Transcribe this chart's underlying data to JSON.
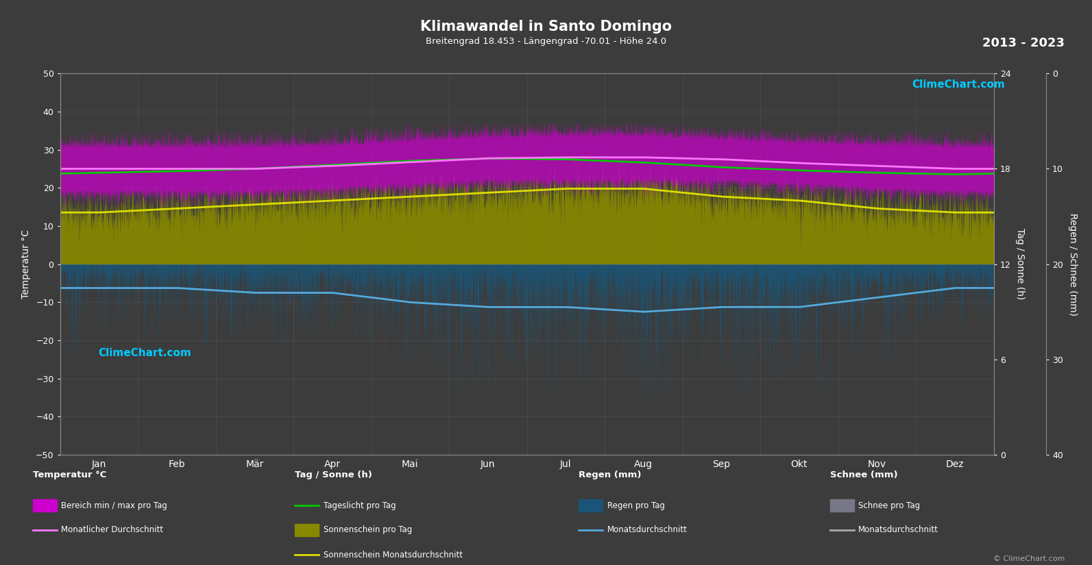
{
  "title": "Klimawandel in Santo Domingo",
  "subtitle": "Breitengrad 18.453 - Längengrad -70.01 - Höhe 24.0",
  "year_range": "2013 - 2023",
  "background_color": "#3c3c3c",
  "plot_bg_color": "#3c3c3c",
  "grid_color": "#555555",
  "text_color": "#ffffff",
  "months": [
    "Jan",
    "Feb",
    "Mär",
    "Apr",
    "Mai",
    "Jun",
    "Jul",
    "Aug",
    "Sep",
    "Okt",
    "Nov",
    "Dez"
  ],
  "temp_ylim": [
    -50,
    50
  ],
  "sun_ylim": [
    0,
    24
  ],
  "rain_ylim": [
    40,
    0
  ],
  "temp_ticks": [
    -50,
    -40,
    -30,
    -20,
    -10,
    0,
    10,
    20,
    30,
    40,
    50
  ],
  "sun_ticks": [
    0,
    6,
    12,
    18,
    24
  ],
  "rain_ticks": [
    0,
    10,
    20,
    30,
    40
  ],
  "temp_max_monthly": [
    30.5,
    30.5,
    30.5,
    31.0,
    32.0,
    33.0,
    33.5,
    33.5,
    32.5,
    31.5,
    31.0,
    30.5
  ],
  "temp_min_monthly": [
    19.5,
    19.5,
    19.5,
    20.5,
    21.5,
    22.5,
    22.5,
    22.5,
    22.5,
    21.5,
    20.5,
    19.5
  ],
  "temp_max_spread": [
    35,
    35,
    35,
    36,
    37,
    37,
    37,
    37,
    36,
    35,
    35,
    35
  ],
  "temp_min_spread": [
    15,
    15,
    15,
    16,
    17,
    18,
    18,
    18,
    18,
    17,
    16,
    15
  ],
  "sunshine_hours_monthly": [
    6.5,
    7.0,
    7.5,
    8.0,
    8.5,
    9.0,
    9.5,
    9.5,
    8.5,
    8.0,
    7.0,
    6.5
  ],
  "daylight_hours_monthly": [
    11.5,
    11.7,
    12.0,
    12.5,
    13.0,
    13.3,
    13.2,
    12.8,
    12.2,
    11.8,
    11.5,
    11.3
  ],
  "rain_monthly_avg_mm": [
    5,
    5,
    6,
    6,
    8,
    9,
    9,
    10,
    9,
    9,
    7,
    5
  ],
  "rain_daily_max_mm": [
    20,
    20,
    22,
    22,
    25,
    28,
    28,
    30,
    28,
    28,
    22,
    20
  ],
  "colors": {
    "temp_fill": "#cc00cc",
    "temp_fill_alpha": 0.65,
    "temp_mean_line": "#ff77ff",
    "sunshine_fill": "#888800",
    "sunshine_fill_alpha": 0.9,
    "sunshine_mean_line": "#dddd00",
    "daylight_line": "#00cc00",
    "rain_fill": "#1a5577",
    "rain_fill_alpha": 0.85,
    "rain_mean_line": "#55aadd",
    "snow_fill": "#777788",
    "snow_mean_line": "#aaaaaa"
  },
  "legend": {
    "temp_section": "Temperatur °C",
    "temp_item1": "Bereich min / max pro Tag",
    "temp_item2": "Monatlicher Durchschnitt",
    "sun_section": "Tag / Sonne (h)",
    "sun_item1": "Tageslicht pro Tag",
    "sun_item2": "Sonnenschein pro Tag",
    "sun_item3": "Sonnenschein Monatsdurchschnitt",
    "rain_section": "Regen (mm)",
    "rain_item1": "Regen pro Tag",
    "rain_item2": "Monatsdurchschnitt",
    "snow_section": "Schnee (mm)",
    "snow_item1": "Schnee pro Tag",
    "snow_item2": "Monatsdurchschnitt"
  },
  "ylabel_left": "Temperatur °C",
  "ylabel_right1": "Tag / Sonne (h)",
  "ylabel_right2": "Regen / Schnee (mm)",
  "copyright": "© ClimeChart.com"
}
